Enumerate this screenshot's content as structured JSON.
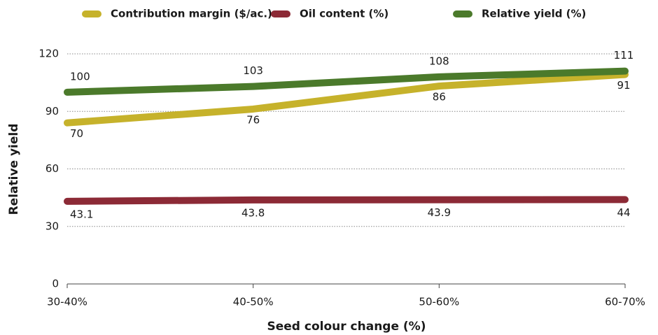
{
  "chart_data": {
    "type": "line",
    "xlabel": "Seed colour change (%)",
    "ylabel": "Relative yield",
    "categories": [
      "30-40%",
      "40-50%",
      "50-60%",
      "60-70%"
    ],
    "series": [
      {
        "name": "Contribution margin ($/ac.)",
        "color": "#c6b22b",
        "values": [
          70,
          76,
          86,
          91
        ],
        "axis": "y2"
      },
      {
        "name": "Oil content (%)",
        "color": "#8c2a36",
        "values": [
          43.1,
          43.8,
          43.9,
          44
        ]
      },
      {
        "name": "Relative yield (%)",
        "color": "#4b7a2b",
        "values": [
          100,
          103,
          108,
          111
        ]
      }
    ],
    "ylim": [
      0,
      120
    ],
    "yticks": [
      0,
      30,
      60,
      90,
      120
    ],
    "y2lim": [
      0,
      100
    ],
    "grid": true,
    "legend": "top"
  }
}
